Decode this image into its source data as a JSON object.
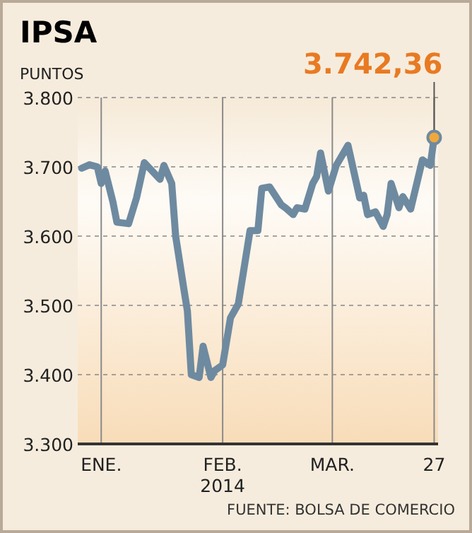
{
  "chart_data": {
    "type": "line",
    "title": "IPSA",
    "ylabel": "PUNTOS",
    "x": [
      "2013-12-27",
      "2013-12-29",
      "2013-12-31",
      "2014-01-01",
      "2014-01-02",
      "2014-01-04",
      "2014-01-05",
      "2014-01-08",
      "2014-01-10",
      "2014-01-12",
      "2014-01-16",
      "2014-01-17",
      "2014-01-19",
      "2014-01-20",
      "2014-01-22",
      "2014-01-23",
      "2014-01-24",
      "2014-01-26",
      "2014-01-27",
      "2014-01-29",
      "2014-01-30",
      "2014-02-01",
      "2014-02-03",
      "2014-02-05",
      "2014-02-08",
      "2014-02-10",
      "2014-02-11",
      "2014-02-13",
      "2014-02-16",
      "2014-02-17",
      "2014-02-19",
      "2014-02-20",
      "2014-02-22",
      "2014-02-24",
      "2014-02-25",
      "2014-02-26",
      "2014-02-28",
      "2014-03-02",
      "2014-03-05",
      "2014-03-08",
      "2014-03-09",
      "2014-03-10",
      "2014-03-12",
      "2014-03-14",
      "2014-03-15",
      "2014-03-16",
      "2014-03-18",
      "2014-03-19",
      "2014-03-21",
      "2014-03-24",
      "2014-03-26",
      "2014-03-27"
    ],
    "series": [
      {
        "color": "#6e8aa0",
        "values": [
          3698,
          3703,
          3700,
          3676,
          3694,
          3649,
          3620,
          3618,
          3655,
          3706,
          3682,
          3702,
          3676,
          3600,
          3527,
          3492,
          3400,
          3396,
          3441,
          3396,
          3406,
          3414,
          3482,
          3502,
          3608,
          3608,
          3669,
          3671,
          3645,
          3641,
          3631,
          3641,
          3639,
          3676,
          3686,
          3720,
          3665,
          3702,
          3731,
          3655,
          3659,
          3631,
          3635,
          3614,
          3631,
          3676,
          3641,
          3657,
          3639,
          3710,
          3702,
          3742.36
        ]
      }
    ],
    "xlim": [
      "2013-12-26",
      "2014-03-28"
    ],
    "xticks": [
      {
        "value": "2014-01-01",
        "label": "ENE."
      },
      {
        "value": "2014-02-01",
        "label": "FEB.\n2014"
      },
      {
        "value": "2014-03-01",
        "label": "MAR."
      },
      {
        "value": "2014-03-27",
        "label": "27"
      }
    ],
    "ylim": [
      3300,
      3800
    ],
    "yticks": [
      {
        "value": 3300,
        "label": "3.300"
      },
      {
        "value": 3400,
        "label": "3.400"
      },
      {
        "value": 3500,
        "label": "3.500"
      },
      {
        "value": 3600,
        "label": "3.600"
      },
      {
        "value": 3700,
        "label": "3.700"
      },
      {
        "value": 3800,
        "label": "3.800"
      }
    ],
    "grid": true,
    "marker": "none",
    "line_style": "solid",
    "annotations": [
      {
        "text": "3.742,36",
        "x": "2014-03-27",
        "y": 3742.36
      },
      "FUENTE: BOLSA DE COMERCIO"
    ]
  }
}
